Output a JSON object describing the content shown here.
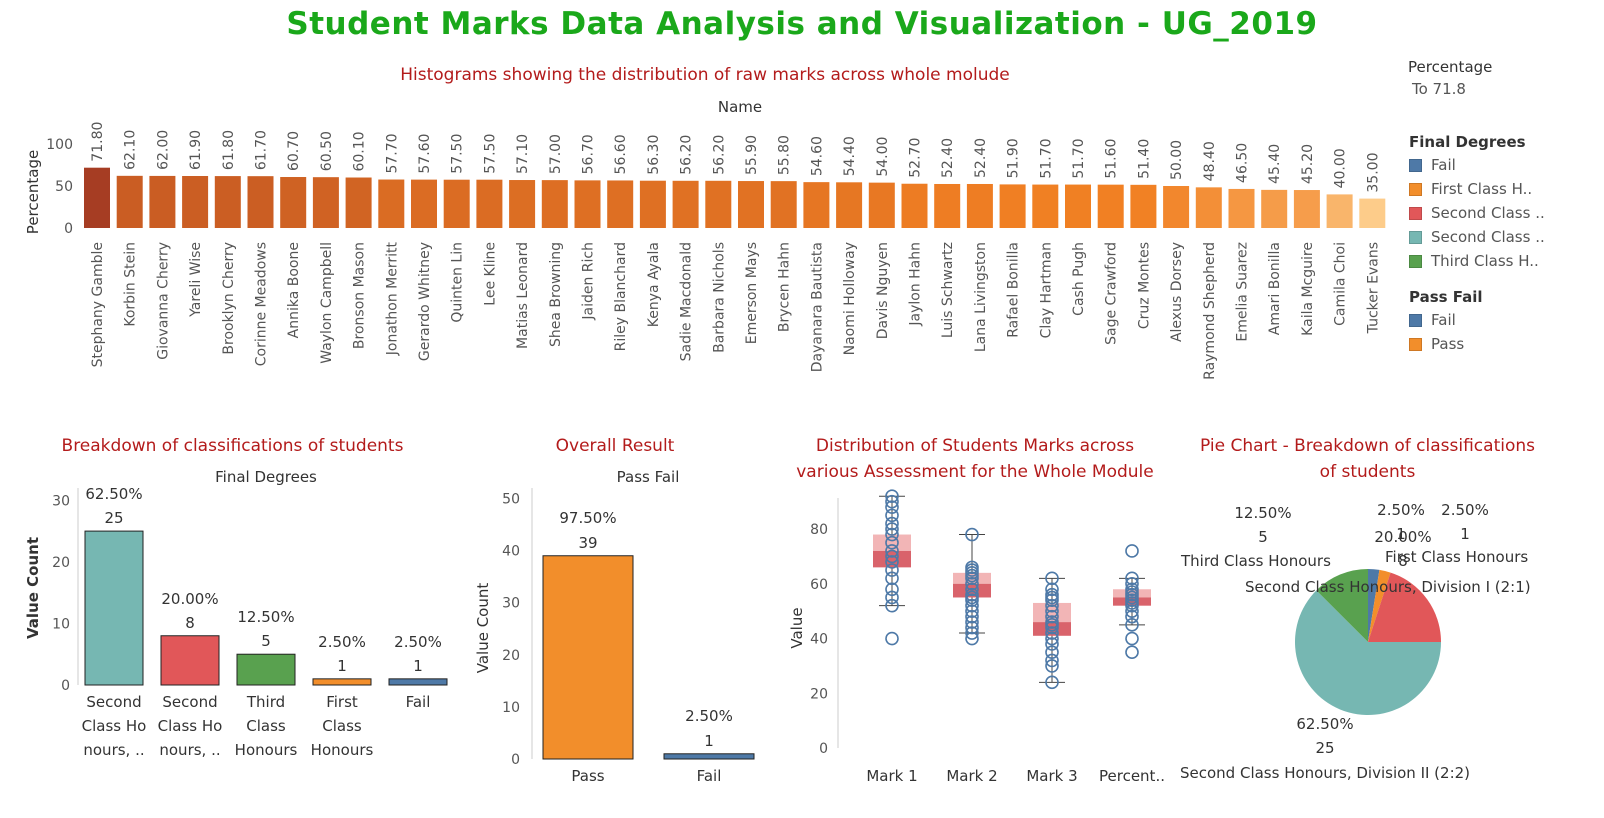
{
  "title": "Student Marks Data Analysis and Visualization - UG_2019",
  "colors": {
    "title": "#1aa81a",
    "section": "#b31b1b"
  },
  "filter": {
    "label": "Percentage",
    "value": "To 71.8"
  },
  "legend": {
    "final_degrees": {
      "title": "Final Degrees",
      "items": [
        {
          "label": "Fail",
          "color": "#4e79a7"
        },
        {
          "label": "First Class H..",
          "color": "#f28e2b"
        },
        {
          "label": "Second Class ..",
          "color": "#e15759"
        },
        {
          "label": "Second Class ..",
          "color": "#76b7b2"
        },
        {
          "label": "Third Class H..",
          "color": "#59a14f"
        }
      ]
    },
    "pass_fail": {
      "title": "Pass Fail",
      "items": [
        {
          "label": "Fail",
          "color": "#4e79a7"
        },
        {
          "label": "Pass",
          "color": "#f28e2b"
        }
      ]
    }
  },
  "histogram": {
    "section_title": "Histograms showing the distribution of raw marks across whole molude",
    "header": "Name",
    "ylabel": "Percentage"
  },
  "classifications": {
    "section_title": "Breakdown of classifications of students",
    "header": "Final Degrees",
    "ylabel": "Value Count"
  },
  "overall": {
    "section_title": "Overall Result",
    "header": "Pass Fail",
    "ylabel": "Value Count"
  },
  "distribution": {
    "section_title_line1": "Distribution of Students Marks across",
    "section_title_line2": "various Assessment for the Whole Module",
    "ylabel": "Value"
  },
  "pie": {
    "section_title_line1": "Pie Chart - Breakdown of classifications",
    "section_title_line2": "of students"
  },
  "chart_data": [
    {
      "type": "bar",
      "ylim": [
        0,
        100
      ],
      "yticks": [
        0,
        50,
        100
      ],
      "categories": [
        "Stephany Gamble",
        "Korbin Stein",
        "Giovanna Cherry",
        "Yareli Wise",
        "Brooklyn Cherry",
        "Corinne Meadows",
        "Annika Boone",
        "Waylon Campbell",
        "Bronson Mason",
        "Jonathon Merritt",
        "Gerardo Whitney",
        "Quinten Lin",
        "Lee Kline",
        "Matias Leonard",
        "Shea Browning",
        "Jaiden Rich",
        "Riley Blanchard",
        "Kenya Ayala",
        "Sadie Macdonald",
        "Barbara Nichols",
        "Emerson Mays",
        "Brycen Hahn",
        "Dayanara Bautista",
        "Naomi Holloway",
        "Davis Nguyen",
        "Jaylon Hahn",
        "Luis Schwartz",
        "Lana Livingston",
        "Rafael Bonilla",
        "Clay Hartman",
        "Cash Pugh",
        "Sage Crawford",
        "Cruz Montes",
        "Alexus Dorsey",
        "Raymond Shepherd",
        "Emelia Suarez",
        "Amari Bonilla",
        "Kaila Mcguire",
        "Camila Choi",
        "Tucker Evans"
      ],
      "values": [
        71.8,
        62.1,
        62.0,
        61.9,
        61.8,
        61.7,
        60.7,
        60.5,
        60.1,
        57.7,
        57.6,
        57.5,
        57.5,
        57.1,
        57.0,
        56.7,
        56.6,
        56.3,
        56.2,
        56.2,
        55.9,
        55.8,
        54.6,
        54.4,
        54.0,
        52.7,
        52.4,
        52.4,
        51.9,
        51.7,
        51.7,
        51.6,
        51.4,
        50.0,
        48.4,
        46.5,
        45.4,
        45.2,
        40.0,
        35.0
      ],
      "labels": [
        "71.80",
        "62.10",
        "62.00",
        "61.90",
        "61.80",
        "61.70",
        "60.70",
        "60.50",
        "60.10",
        "57.70",
        "57.60",
        "57.50",
        "57.50",
        "57.10",
        "57.00",
        "56.70",
        "56.60",
        "56.30",
        "56.20",
        "56.20",
        "55.90",
        "55.80",
        "54.60",
        "54.40",
        "54.00",
        "52.70",
        "52.40",
        "52.40",
        "51.90",
        "51.70",
        "51.70",
        "51.60",
        "51.40",
        "50.00",
        "48.40",
        "46.50",
        "45.40",
        "45.20",
        "40.00",
        "35.00"
      ]
    },
    {
      "type": "bar",
      "ylim": [
        0,
        32
      ],
      "yticks": [
        0,
        10,
        20,
        30
      ],
      "categories": [
        [
          "Second",
          "Class Ho",
          "nours, .."
        ],
        [
          "Second",
          "Class Ho",
          "nours, .."
        ],
        [
          "Third",
          "Class",
          "Honours"
        ],
        [
          "First",
          "Class",
          "Honours"
        ],
        [
          "Fail"
        ]
      ],
      "values": [
        25,
        8,
        5,
        1,
        1
      ],
      "percents": [
        "62.50%",
        "20.00%",
        "12.50%",
        "2.50%",
        "2.50%"
      ],
      "colors": [
        "#76b7b2",
        "#e15759",
        "#59a14f",
        "#f28e2b",
        "#4e79a7"
      ]
    },
    {
      "type": "bar",
      "ylim": [
        0,
        52
      ],
      "yticks": [
        0,
        10,
        20,
        30,
        40,
        50
      ],
      "categories": [
        "Pass",
        "Fail"
      ],
      "values": [
        39,
        1
      ],
      "percents": [
        "97.50%",
        "2.50%"
      ],
      "colors": [
        "#f28e2b",
        "#4e79a7"
      ]
    },
    {
      "type": "scatter",
      "ylim": [
        0,
        95
      ],
      "yticks": [
        0,
        20,
        40,
        60,
        80
      ],
      "categories": [
        "Mark 1",
        "Mark 2",
        "Mark 3",
        "Percent.."
      ],
      "boxes": [
        {
          "whisker_low": 52,
          "q1": 66,
          "median": 72,
          "q3": 78,
          "whisker_high": 92
        },
        {
          "whisker_low": 42,
          "q1": 55,
          "median": 60,
          "q3": 64,
          "whisker_high": 78
        },
        {
          "whisker_low": 24,
          "q1": 41,
          "median": 46,
          "q3": 53,
          "whisker_high": 62
        },
        {
          "whisker_low": 45,
          "q1": 52,
          "median": 55,
          "q3": 58,
          "whisker_high": 62
        }
      ],
      "points": [
        [
          40,
          52,
          55,
          58,
          62,
          65,
          68,
          70,
          72,
          75,
          78,
          80,
          82,
          85,
          88,
          90,
          92
        ],
        [
          40,
          42,
          44,
          46,
          48,
          50,
          52,
          54,
          55,
          56,
          58,
          60,
          62,
          63,
          64,
          65,
          66,
          78
        ],
        [
          24,
          30,
          32,
          35,
          38,
          40,
          42,
          44,
          45,
          46,
          48,
          50,
          52,
          54,
          55,
          56,
          58,
          62
        ],
        [
          35,
          40,
          45,
          48,
          50,
          52,
          53,
          54,
          55,
          56,
          57,
          58,
          60,
          62,
          72
        ]
      ]
    },
    {
      "type": "pie",
      "slices": [
        {
          "name": "Fail",
          "value": 1,
          "pct": "2.50%",
          "color": "#4e79a7"
        },
        {
          "name": "First Class Honours",
          "value": 1,
          "pct": "2.50%",
          "color": "#f28e2b"
        },
        {
          "name": "Second Class Honours, Division I (2:1)",
          "value": 8,
          "pct": "20.00%",
          "color": "#e15759"
        },
        {
          "name": "Second Class Honours, Division II (2:2)",
          "value": 25,
          "pct": "62.50%",
          "color": "#76b7b2"
        },
        {
          "name": "Third Class Honours",
          "value": 5,
          "pct": "12.50%",
          "color": "#59a14f"
        }
      ]
    }
  ]
}
